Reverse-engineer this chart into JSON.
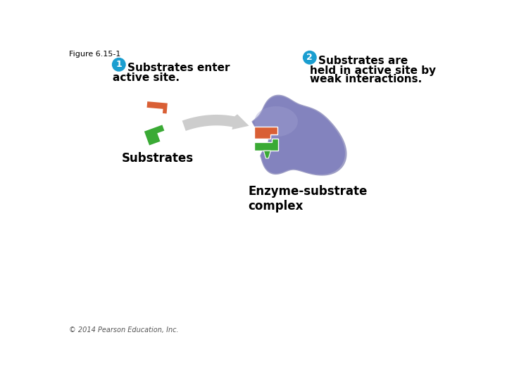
{
  "figure_label": "Figure 6.15-1",
  "step1_circle_color": "#1a9ed0",
  "step1_circle_text": "1",
  "step1_text_line1": "Substrates enter",
  "step1_text_line2": "active site.",
  "step2_circle_color": "#1a9ed0",
  "step2_circle_text": "2",
  "step2_text_line1": "Substrates are",
  "step2_text_line2": "held in active site by",
  "step2_text_line3": "weak interactions.",
  "substrates_label": "Substrates",
  "enzyme_substrate_label": "Enzyme-substrate\ncomplex",
  "substrate1_color": "#d95f35",
  "substrate2_color": "#3aaa35",
  "enzyme_color_center": "#8585c0",
  "enzyme_color_edge": "#6a6aaa",
  "arrow_color": "#c8c8c8",
  "background_color": "#ffffff",
  "copyright_text": "© 2014 Pearson Education, Inc.",
  "text_color": "#000000",
  "font_size_main": 11,
  "font_size_small": 8
}
